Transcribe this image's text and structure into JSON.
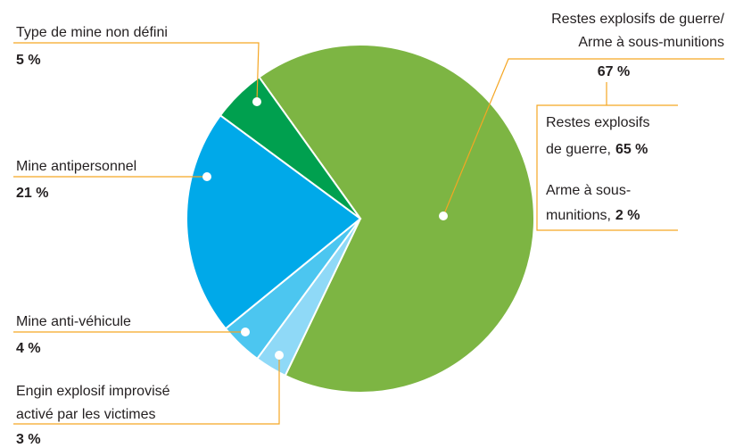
{
  "chart_data": {
    "type": "pie",
    "categories": [
      [
        "Restes explosifs de guerre/",
        "Arme à sous-munitions"
      ],
      [
        "Engin explosif improvisé",
        "activé par les victimes"
      ],
      [
        "Mine anti-véhicule"
      ],
      [
        "Mine antipersonnel"
      ],
      [
        "Type de mine non défini"
      ]
    ],
    "values": [
      67,
      3,
      4,
      21,
      5
    ],
    "value_labels": [
      "67 %",
      "3 %",
      "4 %",
      "21 %",
      "5 %"
    ],
    "colors": [
      "#7db543",
      "#8fd9f7",
      "#4cc6f0",
      "#00a9e9",
      "#00a04f"
    ],
    "breakdown": [
      {
        "label_lines": [
          "Restes explosifs",
          "de guerre,"
        ],
        "value": 65,
        "value_label": "65 %"
      },
      {
        "label_lines": [
          "Arme à sous-",
          "munitions,"
        ],
        "value": 2,
        "value_label": "2 %"
      }
    ]
  }
}
